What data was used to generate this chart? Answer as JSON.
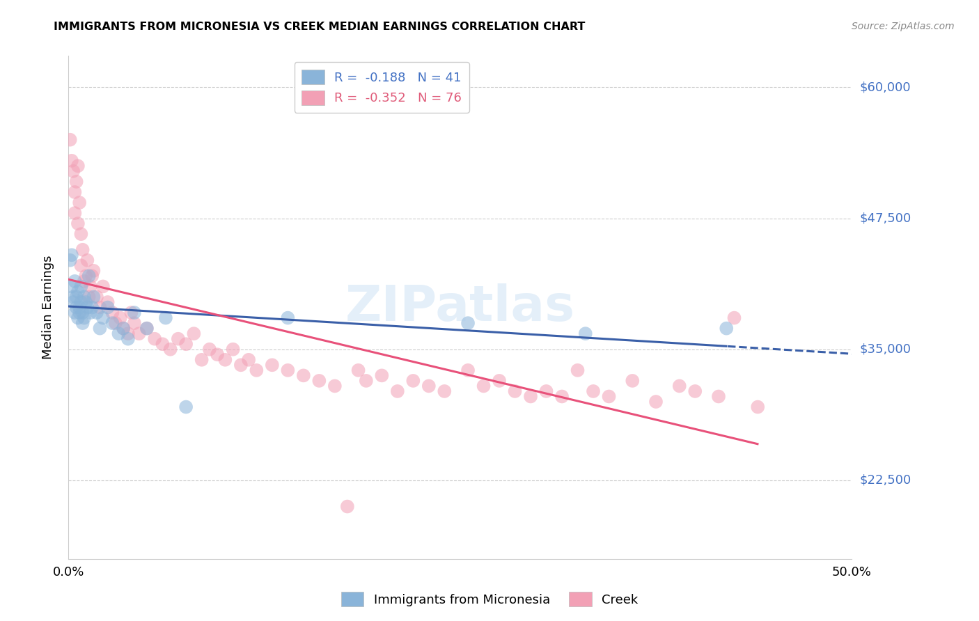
{
  "title": "IMMIGRANTS FROM MICRONESIA VS CREEK MEDIAN EARNINGS CORRELATION CHART",
  "source": "Source: ZipAtlas.com",
  "ylabel": "Median Earnings",
  "xlim": [
    0.0,
    0.5
  ],
  "ylim": [
    15000,
    63000
  ],
  "yticks": [
    22500,
    35000,
    47500,
    60000
  ],
  "ytick_labels": [
    "$22,500",
    "$35,000",
    "$47,500",
    "$60,000"
  ],
  "xticks": [
    0.0,
    0.1,
    0.2,
    0.3,
    0.4,
    0.5
  ],
  "xtick_labels": [
    "0.0%",
    "",
    "",
    "",
    "",
    "50.0%"
  ],
  "R_blue": -0.188,
  "N_blue": 41,
  "R_pink": -0.352,
  "N_pink": 76,
  "blue_color": "#8ab4d9",
  "pink_color": "#f2a0b5",
  "trend_blue": "#3a5fa8",
  "trend_pink": "#e8517a",
  "watermark": "ZIPatlas",
  "legend1_label": "Immigrants from Micronesia",
  "legend2_label": "Creek",
  "blue_x": [
    0.001,
    0.002,
    0.002,
    0.003,
    0.003,
    0.004,
    0.004,
    0.005,
    0.005,
    0.006,
    0.006,
    0.007,
    0.007,
    0.008,
    0.008,
    0.009,
    0.009,
    0.01,
    0.01,
    0.011,
    0.012,
    0.013,
    0.014,
    0.015,
    0.016,
    0.018,
    0.02,
    0.022,
    0.025,
    0.028,
    0.032,
    0.035,
    0.038,
    0.042,
    0.05,
    0.062,
    0.075,
    0.14,
    0.255,
    0.33,
    0.42
  ],
  "blue_y": [
    43500,
    44000,
    41000,
    40000,
    39500,
    38500,
    41500,
    40000,
    39000,
    38000,
    40500,
    39000,
    38500,
    39500,
    41000,
    38500,
    37500,
    38000,
    40000,
    39500,
    39000,
    42000,
    38500,
    39000,
    40000,
    38500,
    37000,
    38000,
    39000,
    37500,
    36500,
    37000,
    36000,
    38500,
    37000,
    38000,
    29500,
    38000,
    37500,
    36500,
    37000
  ],
  "pink_x": [
    0.001,
    0.002,
    0.003,
    0.004,
    0.004,
    0.005,
    0.006,
    0.006,
    0.007,
    0.008,
    0.008,
    0.009,
    0.01,
    0.011,
    0.012,
    0.013,
    0.014,
    0.015,
    0.016,
    0.018,
    0.02,
    0.022,
    0.025,
    0.028,
    0.03,
    0.033,
    0.035,
    0.038,
    0.04,
    0.042,
    0.045,
    0.05,
    0.055,
    0.06,
    0.065,
    0.07,
    0.075,
    0.08,
    0.085,
    0.09,
    0.095,
    0.1,
    0.105,
    0.11,
    0.115,
    0.12,
    0.13,
    0.14,
    0.15,
    0.16,
    0.17,
    0.178,
    0.185,
    0.19,
    0.2,
    0.21,
    0.22,
    0.23,
    0.24,
    0.255,
    0.265,
    0.275,
    0.285,
    0.295,
    0.305,
    0.315,
    0.325,
    0.335,
    0.345,
    0.36,
    0.375,
    0.39,
    0.4,
    0.415,
    0.425,
    0.44
  ],
  "pink_y": [
    55000,
    53000,
    52000,
    50000,
    48000,
    51000,
    52500,
    47000,
    49000,
    46000,
    43000,
    44500,
    41500,
    42000,
    43500,
    40000,
    41000,
    42000,
    42500,
    40000,
    39000,
    41000,
    39500,
    38500,
    37500,
    38000,
    37000,
    36500,
    38500,
    37500,
    36500,
    37000,
    36000,
    35500,
    35000,
    36000,
    35500,
    36500,
    34000,
    35000,
    34500,
    34000,
    35000,
    33500,
    34000,
    33000,
    33500,
    33000,
    32500,
    32000,
    31500,
    20000,
    33000,
    32000,
    32500,
    31000,
    32000,
    31500,
    31000,
    33000,
    31500,
    32000,
    31000,
    30500,
    31000,
    30500,
    33000,
    31000,
    30500,
    32000,
    30000,
    31500,
    31000,
    30500,
    38000,
    29500
  ]
}
